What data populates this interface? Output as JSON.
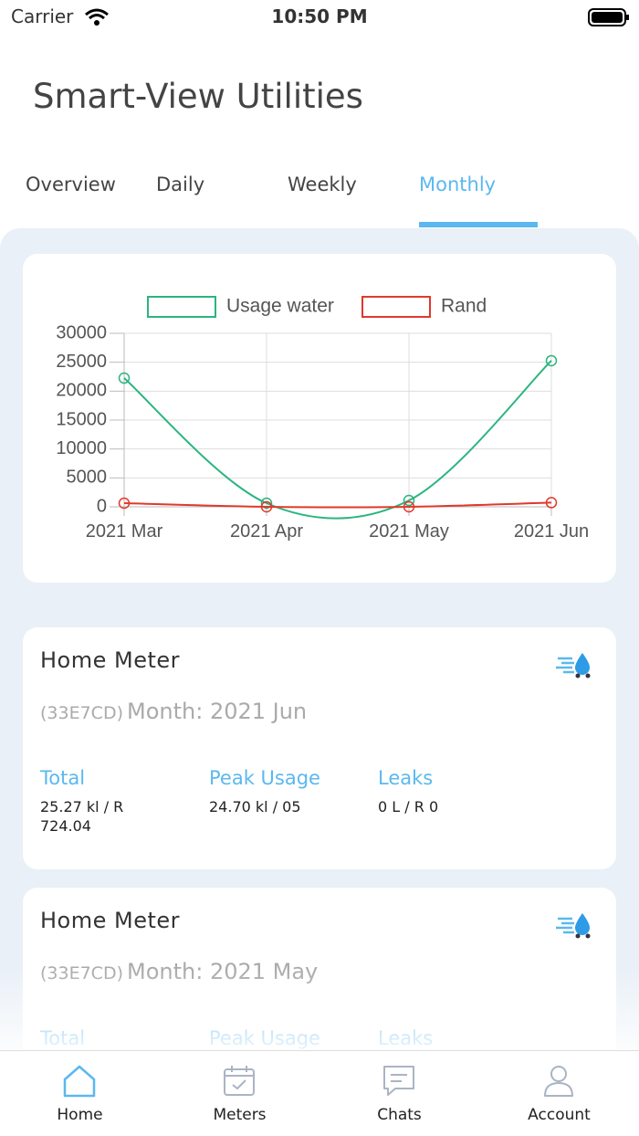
{
  "status_bar": {
    "carrier": "Carrier",
    "time": "10:50 PM"
  },
  "header": {
    "title": "Smart-View Utilities"
  },
  "tabs": {
    "items": [
      "Overview",
      "Daily",
      "Weekly",
      "Monthly"
    ],
    "active": 3
  },
  "chart_data": {
    "type": "line",
    "categories": [
      "2021 Mar",
      "2021 Apr",
      "2021 May",
      "2021 Jun"
    ],
    "series": [
      {
        "name": "Usage water",
        "color": "#2bb57f",
        "values": [
          22260,
          630,
          1100,
          25270
        ]
      },
      {
        "name": "Rand",
        "color": "#e0392b",
        "values": [
          630,
          0,
          0,
          724
        ]
      }
    ],
    "ylim": [
      0,
      30000
    ],
    "yticks": [
      0,
      5000,
      10000,
      15000,
      20000,
      25000,
      30000
    ],
    "grid": true
  },
  "cards": [
    {
      "title": "Home Meter",
      "code": "(33E7CD)",
      "month": "Month: 2021 Jun",
      "stats": [
        {
          "label": "Total",
          "value": "25.27 kl / R 724.04"
        },
        {
          "label": "Peak Usage",
          "value": "24.70 kl / 05"
        },
        {
          "label": "Leaks",
          "value": "0 L / R 0"
        }
      ]
    },
    {
      "title": "Home Meter",
      "code": "(33E7CD)",
      "month": "Month: 2021 May",
      "stats": [
        {
          "label": "Total"
        },
        {
          "label": "Peak Usage"
        },
        {
          "label": "Leaks"
        }
      ]
    }
  ],
  "nav": {
    "items": [
      "Home",
      "Meters",
      "Chats",
      "Account"
    ],
    "active": 0
  }
}
